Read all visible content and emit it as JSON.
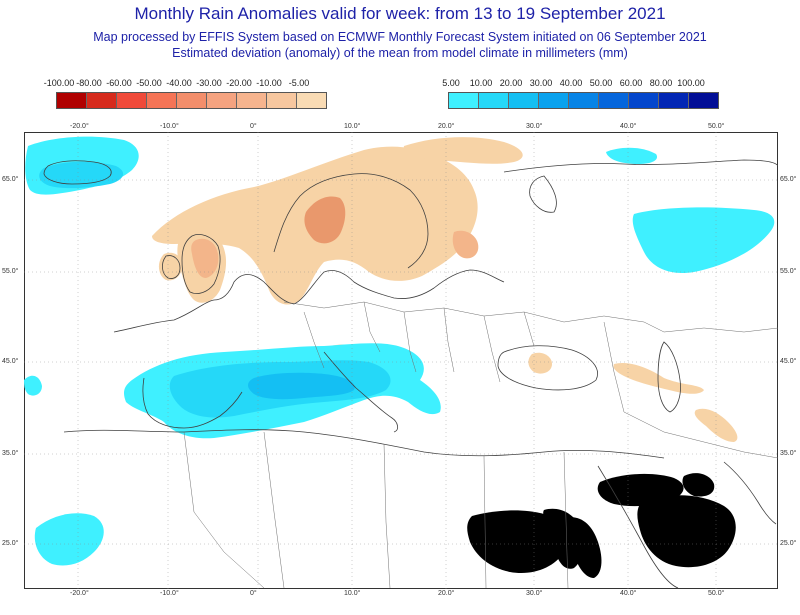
{
  "header": {
    "title": "Monthly Rain Anomalies valid for week: from 13 to 19 September 2021",
    "subtitle_line1": "Map processed by EFFIS System based on ECMWF Monthly Forecast System initiated on 06 September 2021",
    "subtitle_line2": "Estimated deviation (anomaly) of the mean from model climate in millimeters (mm)"
  },
  "legend_negative": {
    "labels": [
      "-100.00",
      "-80.00",
      "-60.00",
      "-50.00",
      "-40.00",
      "-30.00",
      "-20.00",
      "-10.00",
      "-5.00"
    ],
    "colors": [
      "#b00000",
      "#d62a1c",
      "#f04a3a",
      "#f57456",
      "#f38e6b",
      "#f5a380",
      "#f6b48e",
      "#f7c79f",
      "#f9dbb4"
    ]
  },
  "legend_positive": {
    "labels": [
      "5.00",
      "10.00",
      "20.00",
      "30.00",
      "40.00",
      "50.00",
      "60.00",
      "80.00",
      "100.00"
    ],
    "colors": [
      "#3ff0ff",
      "#25d8f8",
      "#14bff3",
      "#0aa2ee",
      "#0784e6",
      "#0566dc",
      "#0346cc",
      "#0226b4",
      "#020e96"
    ]
  },
  "map": {
    "lon_labels": [
      "-20.0°",
      "-10.0°",
      "0°",
      "10.0°",
      "20.0°",
      "30.0°",
      "40.0°",
      "50.0°"
    ],
    "lat_labels": [
      "65.0°",
      "55.0°",
      "45.0°",
      "35.0°",
      "25.0°"
    ],
    "colors": {
      "frame": "#333333",
      "coast": "#404040",
      "dry_light": "#f7d3a6",
      "dry_mid": "#f3b58a",
      "dry_dark": "#e9986c",
      "wet_light": "#3ff0ff",
      "wet_mid": "#25d8f8",
      "wet_dark": "#14bff3",
      "mask": "#000000"
    }
  }
}
